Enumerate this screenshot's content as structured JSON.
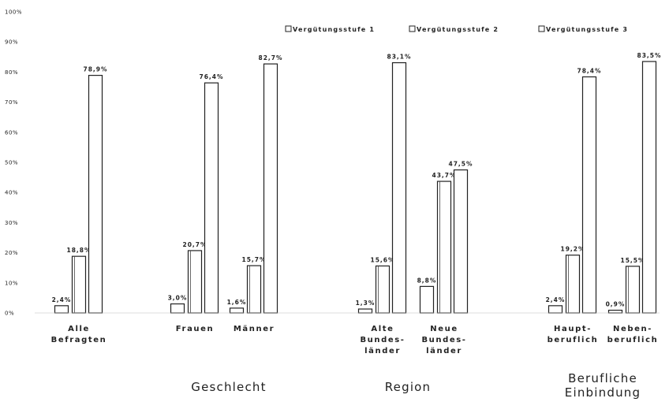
{
  "chart_data": {
    "type": "bar",
    "ylim": [
      0,
      100
    ],
    "yticks": [
      "0%",
      "10%",
      "20%",
      "30%",
      "40%",
      "50%",
      "60%",
      "70%",
      "80%",
      "90%",
      "100%"
    ],
    "categories": [
      [
        "Alle",
        "Befragten"
      ],
      [
        "Frauen"
      ],
      [
        "Männer"
      ],
      [
        "Alte",
        "Bundes-",
        "länder"
      ],
      [
        "Neue",
        "Bundes-",
        "länder"
      ],
      [
        "Haupt-",
        "beruflich"
      ],
      [
        "Neben-",
        "beruflich"
      ]
    ],
    "groups": [
      {
        "label": [
          "Geschlecht"
        ]
      },
      {
        "label": [
          "Region"
        ]
      },
      {
        "label": [
          "Berufliche",
          "Einbindung"
        ]
      }
    ],
    "legend_position": "top",
    "series": [
      {
        "name": "Vergütungsstufe 1",
        "color": "#ffffff",
        "values": [
          2.4,
          3.0,
          1.6,
          1.3,
          8.8,
          2.4,
          0.9
        ],
        "labels": [
          "2,4%",
          "3,0%",
          "1,6%",
          "1,3%",
          "8,8%",
          "2,4%",
          "0,9%"
        ]
      },
      {
        "name": "Vergütungsstufe 2",
        "color": "#ffffff",
        "values": [
          18.8,
          20.7,
          15.7,
          15.6,
          43.7,
          19.2,
          15.5
        ],
        "labels": [
          "18,8%",
          "20,7%",
          "15,7%",
          "15,6%",
          "43,7%",
          "19,2%",
          "15,5%"
        ]
      },
      {
        "name": "Vergütungsstufe 3",
        "color": "#ffffff",
        "values": [
          78.9,
          76.4,
          82.7,
          83.1,
          47.5,
          78.4,
          83.5
        ],
        "labels": [
          "78,9%",
          "76,4%",
          "82,7%",
          "83,1%",
          "47,5%",
          "78,4%",
          "83,5%"
        ]
      }
    ]
  }
}
